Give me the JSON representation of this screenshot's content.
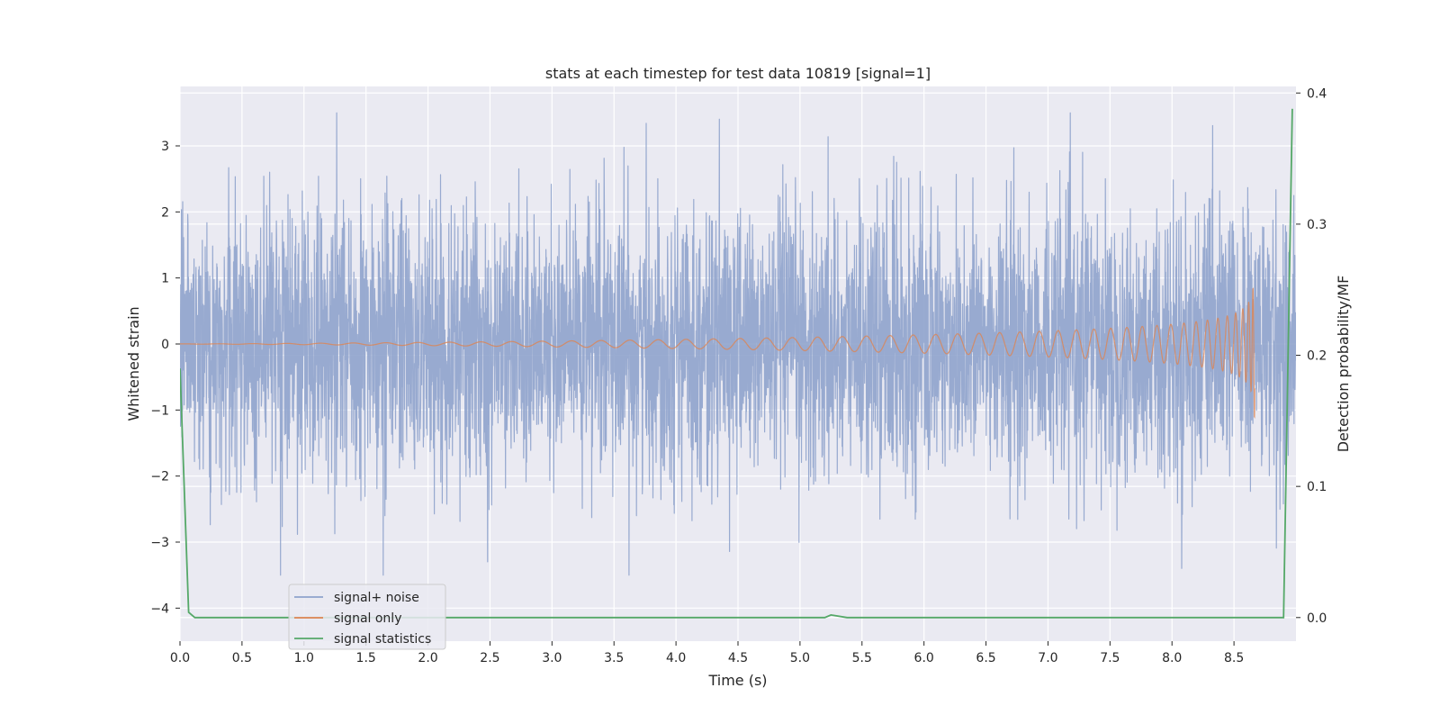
{
  "chart_data": {
    "type": "line",
    "title": "stats at each timestep for test data 10819 [signal=1]",
    "xlabel": "Time (s)",
    "ylabel": "Whitened strain",
    "y2label": "Detection probability/MF",
    "xlim": [
      0.0,
      9.0
    ],
    "ylim": [
      -4.5,
      3.9
    ],
    "y2lim": [
      -0.018,
      0.405
    ],
    "x_ticks": [
      "0.0",
      "0.5",
      "1.0",
      "1.5",
      "2.0",
      "2.5",
      "3.0",
      "3.5",
      "4.0",
      "4.5",
      "5.0",
      "5.5",
      "6.0",
      "6.5",
      "7.0",
      "7.5",
      "8.0",
      "8.5"
    ],
    "y_ticks": [
      "3",
      "2",
      "1",
      "0",
      "−1",
      "−2",
      "−3",
      "−4"
    ],
    "y2_ticks": [
      "0.4",
      "0.3",
      "0.2",
      "0.1",
      "0.0"
    ],
    "grid": true,
    "legend_position": "lower-left",
    "series": [
      {
        "name": "signal+ noise",
        "axis": "left",
        "color": "#8fa3cc",
        "kind": "gaussian-noise",
        "sample_rate_hz": 512,
        "std": 1.0,
        "min": -3.5,
        "max": 3.5,
        "x_range": [
          0.0,
          9.0
        ]
      },
      {
        "name": "signal only",
        "axis": "left",
        "color": "#dd8452",
        "kind": "chirp",
        "x_range": [
          0.0,
          8.67
        ],
        "merger_time": 8.67,
        "peak_amplitude": 1.3
      },
      {
        "name": "signal statistics",
        "axis": "right",
        "color": "#55a868",
        "x": [
          0.0,
          0.07,
          0.12,
          5.2,
          5.25,
          5.38,
          8.9,
          8.97
        ],
        "y": [
          0.19,
          0.004,
          0.0,
          0.0,
          0.002,
          0.0,
          0.0,
          0.388
        ]
      }
    ]
  }
}
